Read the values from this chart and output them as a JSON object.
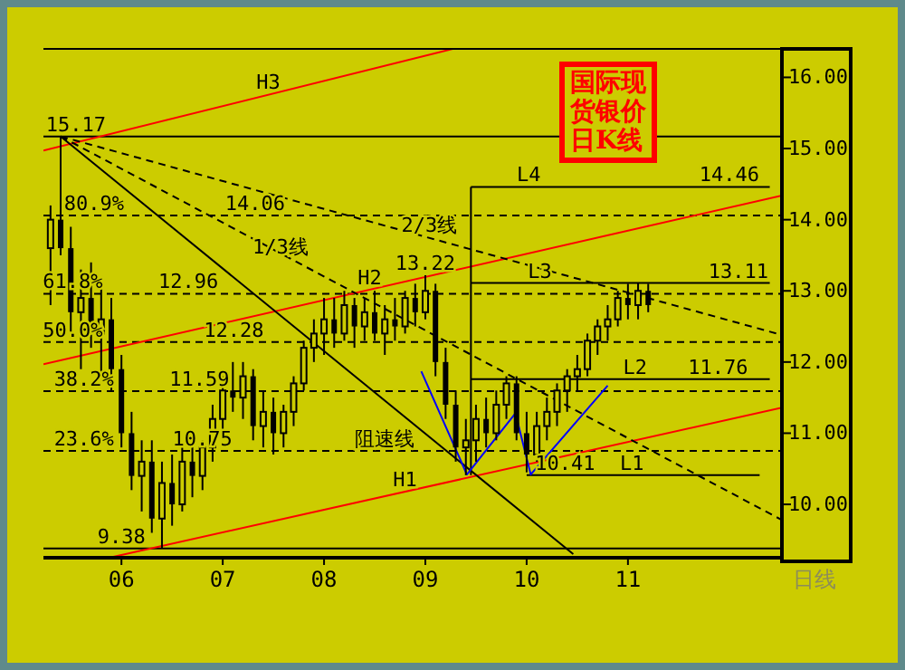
{
  "chart_data": {
    "type": "candlestick",
    "title": "国际现货银价日K线",
    "color": "#000000",
    "x": [
      2005.3,
      2005.4,
      2005.5,
      2005.6,
      2005.7,
      2005.8,
      2005.9,
      2006.0,
      2006.1,
      2006.2,
      2006.3,
      2006.4,
      2006.5,
      2006.6,
      2006.7,
      2006.8,
      2006.9,
      2007.0,
      2007.1,
      2007.2,
      2007.3,
      2007.4,
      2007.5,
      2007.6,
      2007.7,
      2007.8,
      2007.9,
      2008.0,
      2008.1,
      2008.2,
      2008.3,
      2008.4,
      2008.5,
      2008.6,
      2008.7,
      2008.8,
      2008.9,
      2009.0,
      2009.1,
      2009.2,
      2009.3,
      2009.4,
      2009.5,
      2009.6,
      2009.7,
      2009.8,
      2009.9,
      2010.0,
      2010.1,
      2010.2,
      2010.3,
      2010.4,
      2010.5,
      2010.6,
      2010.7,
      2010.8,
      2010.9,
      2011.0,
      2011.1,
      2011.2
    ],
    "ohlc": [
      [
        13.6,
        14.2,
        12.8,
        14.0
      ],
      [
        14.0,
        15.17,
        13.5,
        13.6
      ],
      [
        13.6,
        13.9,
        12.4,
        12.7
      ],
      [
        12.7,
        13.3,
        11.9,
        12.9
      ],
      [
        12.9,
        13.4,
        12.2,
        12.4
      ],
      [
        12.4,
        13.1,
        11.8,
        12.6
      ],
      [
        12.6,
        12.9,
        11.6,
        11.9
      ],
      [
        11.9,
        12.1,
        10.8,
        11.0
      ],
      [
        11.0,
        11.3,
        10.2,
        10.4
      ],
      [
        10.4,
        10.9,
        9.9,
        10.6
      ],
      [
        10.6,
        10.9,
        9.6,
        9.8
      ],
      [
        9.8,
        10.6,
        9.38,
        10.3
      ],
      [
        10.3,
        10.7,
        9.7,
        10.0
      ],
      [
        10.0,
        10.8,
        9.9,
        10.6
      ],
      [
        10.6,
        11.0,
        10.1,
        10.4
      ],
      [
        10.4,
        10.9,
        10.2,
        10.8
      ],
      [
        10.8,
        11.4,
        10.6,
        11.2
      ],
      [
        11.2,
        11.8,
        11.0,
        11.6
      ],
      [
        11.6,
        12.0,
        11.3,
        11.5
      ],
      [
        11.5,
        12.0,
        11.2,
        11.8
      ],
      [
        11.8,
        11.9,
        10.9,
        11.1
      ],
      [
        11.1,
        11.6,
        10.8,
        11.3
      ],
      [
        11.3,
        11.5,
        10.7,
        11.0
      ],
      [
        11.0,
        11.4,
        10.8,
        11.3
      ],
      [
        11.3,
        11.8,
        11.1,
        11.7
      ],
      [
        11.7,
        12.3,
        11.6,
        12.2
      ],
      [
        12.2,
        12.6,
        12.0,
        12.4
      ],
      [
        12.4,
        12.9,
        12.1,
        12.6
      ],
      [
        12.6,
        12.9,
        12.2,
        12.4
      ],
      [
        12.4,
        13.0,
        12.3,
        12.8
      ],
      [
        12.8,
        12.9,
        12.2,
        12.5
      ],
      [
        12.5,
        12.9,
        12.3,
        12.7
      ],
      [
        12.7,
        13.0,
        12.3,
        12.4
      ],
      [
        12.4,
        12.8,
        12.1,
        12.6
      ],
      [
        12.6,
        12.9,
        12.3,
        12.5
      ],
      [
        12.5,
        13.0,
        12.4,
        12.9
      ],
      [
        12.9,
        13.1,
        12.5,
        12.7
      ],
      [
        12.7,
        13.22,
        12.6,
        13.0
      ],
      [
        13.0,
        13.1,
        11.8,
        12.0
      ],
      [
        12.0,
        12.2,
        11.2,
        11.4
      ],
      [
        11.4,
        11.6,
        10.6,
        10.8
      ],
      [
        10.8,
        11.2,
        10.41,
        10.9
      ],
      [
        10.9,
        11.4,
        10.6,
        11.2
      ],
      [
        11.2,
        11.5,
        10.8,
        11.0
      ],
      [
        11.0,
        11.6,
        10.9,
        11.4
      ],
      [
        11.4,
        11.8,
        11.2,
        11.7
      ],
      [
        11.7,
        11.8,
        10.9,
        11.0
      ],
      [
        11.0,
        11.3,
        10.45,
        10.7
      ],
      [
        10.7,
        11.3,
        10.6,
        11.1
      ],
      [
        11.1,
        11.5,
        10.9,
        11.3
      ],
      [
        11.3,
        11.7,
        11.1,
        11.6
      ],
      [
        11.6,
        11.9,
        11.3,
        11.8
      ],
      [
        11.8,
        12.1,
        11.6,
        11.9
      ],
      [
        11.9,
        12.4,
        11.8,
        12.3
      ],
      [
        12.3,
        12.6,
        12.1,
        12.5
      ],
      [
        12.5,
        12.8,
        12.3,
        12.6
      ],
      [
        12.6,
        13.0,
        12.5,
        12.9
      ],
      [
        12.9,
        13.1,
        12.6,
        12.8
      ],
      [
        12.8,
        13.11,
        12.6,
        13.0
      ],
      [
        13.0,
        13.1,
        12.7,
        12.8
      ]
    ],
    "series": [
      {
        "type": "line",
        "color": "#ff0000",
        "line_style": "solid",
        "x": [
          2005.23,
          2009.27
        ],
        "values": [
          14.97,
          16.4
        ]
      },
      {
        "type": "line",
        "color": "#ff0000",
        "line_style": "solid",
        "x": [
          2005.23,
          2012.52
        ],
        "values": [
          11.97,
          14.34
        ]
      },
      {
        "type": "line",
        "color": "#ff0000",
        "line_style": "solid",
        "x": [
          2005.88,
          2012.52
        ],
        "values": [
          9.25,
          11.36
        ]
      },
      {
        "type": "line",
        "color": "#000000",
        "line_style": "solid",
        "x": [
          2009.45,
          2012.4
        ],
        "values": [
          14.46,
          14.46
        ]
      },
      {
        "type": "line",
        "color": "#000000",
        "line_style": "solid",
        "x": [
          2009.45,
          2012.4
        ],
        "values": [
          13.11,
          13.11
        ]
      },
      {
        "type": "line",
        "color": "#000000",
        "line_style": "solid",
        "x": [
          2009.45,
          2012.4
        ],
        "values": [
          11.76,
          11.76
        ]
      },
      {
        "type": "line",
        "color": "#000000",
        "line_style": "solid",
        "x": [
          2010.0,
          2012.3
        ],
        "values": [
          10.41,
          10.41
        ]
      },
      {
        "type": "line",
        "color": "#000000",
        "line_style": "solid",
        "x": [
          2009.45,
          2009.45
        ],
        "values": [
          14.46,
          10.41
        ]
      },
      {
        "type": "line",
        "color": "#000000",
        "line_style": "solid",
        "x": [
          2005.4,
          2010.46
        ],
        "values": [
          15.17,
          9.3
        ]
      },
      {
        "type": "line",
        "color": "#000000",
        "line_style": "dashed",
        "x": [
          2005.4,
          2012.52
        ],
        "values": [
          15.17,
          9.78
        ]
      },
      {
        "type": "line",
        "color": "#000000",
        "line_style": "dashed",
        "x": [
          2005.4,
          2012.52
        ],
        "values": [
          15.17,
          12.38
        ]
      },
      {
        "type": "line",
        "color": "#0000ff",
        "line_style": "solid",
        "x": [
          2008.96,
          2009.41,
          2009.89,
          2010.04,
          2010.8
        ],
        "values": [
          11.87,
          10.42,
          11.28,
          10.42,
          11.67
        ]
      }
    ],
    "ref_lines": [
      {
        "axis": "y",
        "value": 15.17,
        "color": "#000000",
        "line_style": "solid"
      },
      {
        "axis": "y",
        "value": 9.38,
        "color": "#000000",
        "line_style": "solid"
      },
      {
        "axis": "y",
        "value": 14.06,
        "color": "#000000",
        "line_style": "dashed"
      },
      {
        "axis": "y",
        "value": 12.96,
        "color": "#000000",
        "line_style": "dashed"
      },
      {
        "axis": "y",
        "value": 12.28,
        "color": "#000000",
        "line_style": "dashed"
      },
      {
        "axis": "y",
        "value": 11.59,
        "color": "#000000",
        "line_style": "dashed"
      },
      {
        "axis": "y",
        "value": 10.75,
        "color": "#000000",
        "line_style": "dashed"
      }
    ],
    "annotations": [
      {
        "text": "15.17",
        "x": 2005.55,
        "y": 15.17
      },
      {
        "text": "80.9%",
        "x": 2005.73,
        "y": 14.06
      },
      {
        "text": "14.06",
        "x": 2007.32,
        "y": 14.06
      },
      {
        "text": "1/3线",
        "x": 2007.57,
        "y": 13.45
      },
      {
        "text": "2/3线",
        "x": 2009.04,
        "y": 13.75
      },
      {
        "text": "13.22",
        "x": 2009.0,
        "y": 13.22
      },
      {
        "text": "H2",
        "x": 2008.45,
        "y": 13.02
      },
      {
        "text": "61.8%",
        "x": 2005.52,
        "y": 12.96
      },
      {
        "text": "12.96",
        "x": 2006.66,
        "y": 12.96
      },
      {
        "text": "50.0%",
        "x": 2005.52,
        "y": 12.28
      },
      {
        "text": "12.28",
        "x": 2007.11,
        "y": 12.28
      },
      {
        "text": "38.2%",
        "x": 2005.63,
        "y": 11.59
      },
      {
        "text": "11.59",
        "x": 2006.77,
        "y": 11.59
      },
      {
        "text": "23.6%",
        "x": 2005.63,
        "y": 10.75
      },
      {
        "text": "10.75",
        "x": 2006.8,
        "y": 10.75
      },
      {
        "text": "9.38",
        "x": 2006.0,
        "y": 9.38
      },
      {
        "text": "H1",
        "x": 2008.8,
        "y": 10.18
      },
      {
        "text": "阻速线",
        "x": 2008.6,
        "y": 10.75
      },
      {
        "text": "H3",
        "x": 2007.45,
        "y": 15.76
      },
      {
        "text": "L4",
        "x": 2010.02,
        "y": 14.46
      },
      {
        "text": "14.46",
        "x": 2012.0,
        "y": 14.46
      },
      {
        "text": "L3",
        "x": 2010.13,
        "y": 13.11
      },
      {
        "text": "13.11",
        "x": 2012.09,
        "y": 13.11
      },
      {
        "text": "L2",
        "x": 2011.07,
        "y": 11.76
      },
      {
        "text": "11.76",
        "x": 2011.89,
        "y": 11.76
      },
      {
        "text": "10.41",
        "x": 2010.38,
        "y": 10.41
      },
      {
        "text": "L1",
        "x": 2011.04,
        "y": 10.41
      },
      "日线"
    ],
    "xlim": [
      2005.23,
      2012.52
    ],
    "ylim": [
      9.25,
      16.4
    ],
    "xticks": [
      {
        "value": 2006,
        "label": "06"
      },
      {
        "value": 2007,
        "label": "07"
      },
      {
        "value": 2008,
        "label": "08"
      },
      {
        "value": 2009,
        "label": "09"
      },
      {
        "value": 2010,
        "label": "10"
      },
      {
        "value": 2011,
        "label": "11"
      }
    ],
    "yticks": [
      {
        "value": 10,
        "label": "10.00"
      },
      {
        "value": 11,
        "label": "11.00"
      },
      {
        "value": 12,
        "label": "12.00"
      },
      {
        "value": 13,
        "label": "13.00"
      },
      {
        "value": 14,
        "label": "14.00"
      },
      {
        "value": 15,
        "label": "15.00"
      },
      {
        "value": 16,
        "label": "16.00"
      }
    ]
  }
}
